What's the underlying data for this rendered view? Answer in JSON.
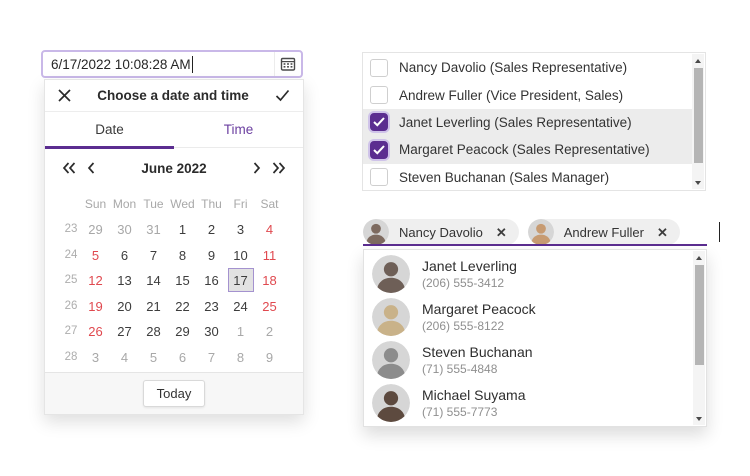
{
  "colors": {
    "accent": "#5b2d90",
    "accent_light": "#c9b8e8",
    "tab_time_text": "#6b3fa0",
    "weekend_red": "#e0494f",
    "muted_text": "#a8a8a8",
    "selected_day_bg": "#e2e2e2",
    "selected_day_border": "#a492cf",
    "row_highlight": "#ececec",
    "chip_bg": "#efefef"
  },
  "datetime_picker": {
    "input_value": "6/17/2022 10:08:28 AM",
    "calendar_button_icon": "calendar-icon",
    "popup": {
      "close_icon": "close-icon",
      "title": "Choose a date and time",
      "confirm_icon": "checkmark-icon",
      "tabs": {
        "date": "Date",
        "time": "Time"
      },
      "active_tab": "Date",
      "nav": {
        "prev_year_icon": "double-chevron-left-icon",
        "prev_month_icon": "chevron-left-icon",
        "month_label": "June 2022",
        "next_month_icon": "chevron-right-icon",
        "next_year_icon": "double-chevron-right-icon"
      },
      "day_headers": [
        "Sun",
        "Mon",
        "Tue",
        "Wed",
        "Thu",
        "Fri",
        "Sat"
      ],
      "weeks": [
        {
          "week": "23",
          "days": [
            {
              "text": "29",
              "state": "muted"
            },
            {
              "text": "30",
              "state": "muted"
            },
            {
              "text": "31",
              "state": "muted"
            },
            {
              "text": "1",
              "state": ""
            },
            {
              "text": "2",
              "state": ""
            },
            {
              "text": "3",
              "state": ""
            },
            {
              "text": "4",
              "state": "red"
            }
          ]
        },
        {
          "week": "24",
          "days": [
            {
              "text": "5",
              "state": "red"
            },
            {
              "text": "6",
              "state": ""
            },
            {
              "text": "7",
              "state": ""
            },
            {
              "text": "8",
              "state": ""
            },
            {
              "text": "9",
              "state": ""
            },
            {
              "text": "10",
              "state": ""
            },
            {
              "text": "11",
              "state": "red"
            }
          ]
        },
        {
          "week": "25",
          "days": [
            {
              "text": "12",
              "state": "red"
            },
            {
              "text": "13",
              "state": ""
            },
            {
              "text": "14",
              "state": ""
            },
            {
              "text": "15",
              "state": ""
            },
            {
              "text": "16",
              "state": ""
            },
            {
              "text": "17",
              "state": "selected"
            },
            {
              "text": "18",
              "state": "red"
            }
          ]
        },
        {
          "week": "26",
          "days": [
            {
              "text": "19",
              "state": "red"
            },
            {
              "text": "20",
              "state": ""
            },
            {
              "text": "21",
              "state": ""
            },
            {
              "text": "22",
              "state": ""
            },
            {
              "text": "23",
              "state": ""
            },
            {
              "text": "24",
              "state": ""
            },
            {
              "text": "25",
              "state": "red"
            }
          ]
        },
        {
          "week": "27",
          "days": [
            {
              "text": "26",
              "state": "red"
            },
            {
              "text": "27",
              "state": ""
            },
            {
              "text": "28",
              "state": ""
            },
            {
              "text": "29",
              "state": ""
            },
            {
              "text": "30",
              "state": ""
            },
            {
              "text": "1",
              "state": "muted"
            },
            {
              "text": "2",
              "state": "muted"
            }
          ]
        },
        {
          "week": "28",
          "days": [
            {
              "text": "3",
              "state": "muted"
            },
            {
              "text": "4",
              "state": "muted"
            },
            {
              "text": "5",
              "state": "muted"
            },
            {
              "text": "6",
              "state": "muted"
            },
            {
              "text": "7",
              "state": "muted"
            },
            {
              "text": "8",
              "state": "muted"
            },
            {
              "text": "9",
              "state": "muted"
            }
          ]
        }
      ],
      "today_label": "Today"
    }
  },
  "employee_checklist": {
    "items": [
      {
        "label": "Nancy Davolio (Sales Representative)",
        "checked": false
      },
      {
        "label": "Andrew Fuller (Vice President, Sales)",
        "checked": false
      },
      {
        "label": "Janet Leverling (Sales Representative)",
        "checked": true
      },
      {
        "label": "Margaret Peacock (Sales Representative)",
        "checked": true
      },
      {
        "label": "Steven Buchanan (Sales Manager)",
        "checked": false
      }
    ]
  },
  "contact_multiselect": {
    "chips": [
      {
        "label": "Nancy Davolio",
        "remove_icon": "close-icon",
        "avatar_icon": "person-avatar",
        "avatar_tint": "#7d6a5f"
      },
      {
        "label": "Andrew Fuller",
        "remove_icon": "close-icon",
        "avatar_icon": "person-avatar",
        "avatar_tint": "#c79b72"
      }
    ],
    "options": [
      {
        "name": "Janet Leverling",
        "phone": "(206) 555-3412",
        "avatar_icon": "person-avatar",
        "avatar_tint": "#6e5f57"
      },
      {
        "name": "Margaret Peacock",
        "phone": "(206) 555-8122",
        "avatar_icon": "person-avatar",
        "avatar_tint": "#c9b289"
      },
      {
        "name": "Steven Buchanan",
        "phone": "(71) 555-4848",
        "avatar_icon": "person-avatar",
        "avatar_tint": "#8c8c8c"
      },
      {
        "name": "Michael Suyama",
        "phone": "(71) 555-7773",
        "avatar_icon": "person-avatar",
        "avatar_tint": "#5d4a3f"
      }
    ]
  }
}
